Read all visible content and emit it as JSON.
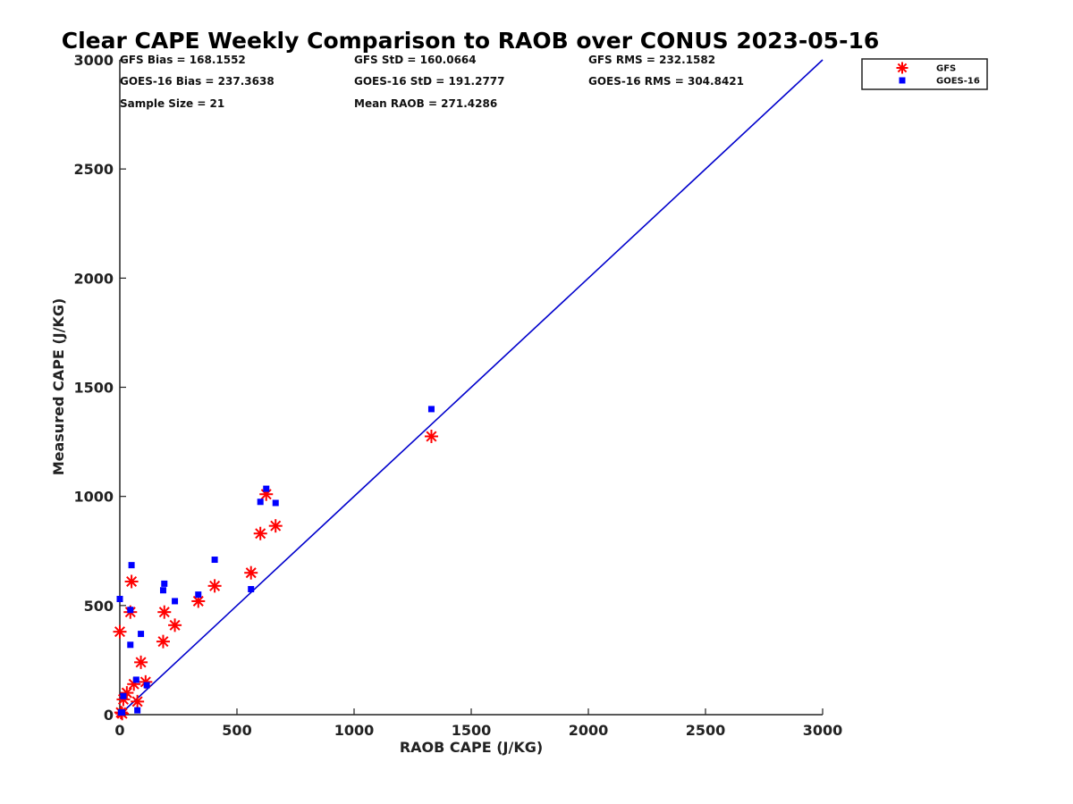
{
  "chart_data": {
    "type": "scatter",
    "title": "Clear CAPE Weekly Comparison to RAOB over CONUS 2023-05-16",
    "xlabel": "RAOB CAPE (J/KG)",
    "ylabel": "Measured CAPE (J/KG)",
    "xlim": [
      0,
      3000
    ],
    "ylim": [
      0,
      3000
    ],
    "xticks": [
      "0",
      "500",
      "1000",
      "1500",
      "2000",
      "2500",
      "3000"
    ],
    "yticks": [
      "0",
      "500",
      "1000",
      "1500",
      "2000",
      "2500",
      "3000"
    ],
    "grid": false,
    "legend_position": "top-right",
    "stats": [
      [
        "GFS Bias = 168.1552",
        "GFS StD = 160.0664",
        "GFS RMS = 232.1582"
      ],
      [
        "GOES-16 Bias = 237.3638",
        "GOES-16 StD = 191.2777",
        "GOES-16 RMS = 304.8421"
      ],
      [
        "Sample Size = 21",
        "Mean RAOB = 271.4286",
        ""
      ]
    ],
    "reference_line": {
      "x": [
        0,
        3000
      ],
      "y": [
        0,
        3000
      ],
      "color": "#0000cc"
    },
    "series": [
      {
        "name": "GFS",
        "marker": "asterisk",
        "color": "#ff0000",
        "points": [
          [
            0,
            380
          ],
          [
            5,
            10
          ],
          [
            10,
            5
          ],
          [
            15,
            70
          ],
          [
            30,
            100
          ],
          [
            45,
            470
          ],
          [
            50,
            610
          ],
          [
            60,
            140
          ],
          [
            75,
            60
          ],
          [
            90,
            240
          ],
          [
            110,
            150
          ],
          [
            185,
            335
          ],
          [
            190,
            470
          ],
          [
            235,
            410
          ],
          [
            335,
            520
          ],
          [
            405,
            590
          ],
          [
            560,
            650
          ],
          [
            600,
            830
          ],
          [
            625,
            1010
          ],
          [
            665,
            865
          ],
          [
            1330,
            1275
          ]
        ]
      },
      {
        "name": "GOES-16",
        "marker": "square",
        "color": "#0000ff",
        "points": [
          [
            0,
            530
          ],
          [
            5,
            10
          ],
          [
            10,
            10
          ],
          [
            15,
            85
          ],
          [
            45,
            320
          ],
          [
            45,
            480
          ],
          [
            50,
            685
          ],
          [
            70,
            160
          ],
          [
            75,
            20
          ],
          [
            90,
            370
          ],
          [
            115,
            135
          ],
          [
            185,
            570
          ],
          [
            190,
            600
          ],
          [
            235,
            520
          ],
          [
            335,
            550
          ],
          [
            405,
            710
          ],
          [
            560,
            575
          ],
          [
            600,
            975
          ],
          [
            625,
            1035
          ],
          [
            665,
            970
          ],
          [
            1330,
            1400
          ]
        ]
      }
    ]
  }
}
